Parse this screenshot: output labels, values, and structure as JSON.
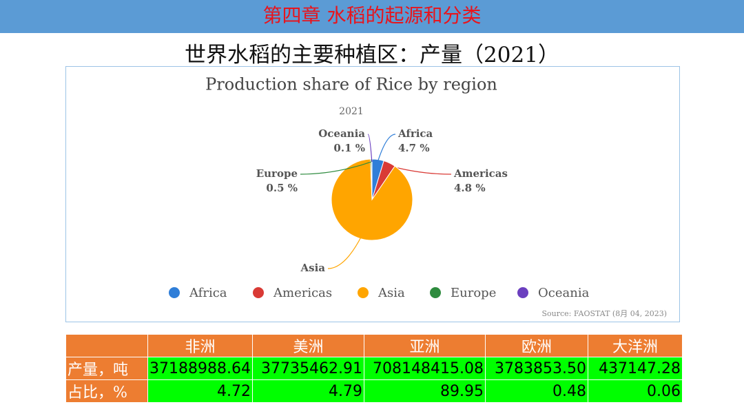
{
  "header": {
    "title": "第四章 水稻的起源和分类"
  },
  "subtitle": "世界水稻的主要种植区：产量（2021）",
  "chart_data": {
    "type": "pie",
    "title": "Production share of Rice by region",
    "subtitle": "2021",
    "categories": [
      "Africa",
      "Americas",
      "Asia",
      "Europe",
      "Oceania"
    ],
    "values": [
      4.7,
      4.8,
      89.9,
      0.5,
      0.1
    ],
    "value_labels": [
      "4.7 %",
      "4.8 %",
      null,
      "0.5 %",
      "0.1 %"
    ],
    "colors": [
      "#2f7ed8",
      "#d93a35",
      "#ffa500",
      "#2e8b3e",
      "#6b3fbf"
    ],
    "source": "Source: FAOSTAT (8月 04, 2023)"
  },
  "table": {
    "columns": [
      "非洲",
      "美洲",
      "亚洲",
      "欧洲",
      "大洋洲"
    ],
    "rows": [
      {
        "label": "产量，吨",
        "cells": [
          "37188988.64",
          "37735462.91",
          "708148415.08",
          "3783853.50",
          "437147.28"
        ]
      },
      {
        "label": "占比，%",
        "cells": [
          "4.72",
          "4.79",
          "89.95",
          "0.48",
          "0.06"
        ]
      }
    ]
  }
}
